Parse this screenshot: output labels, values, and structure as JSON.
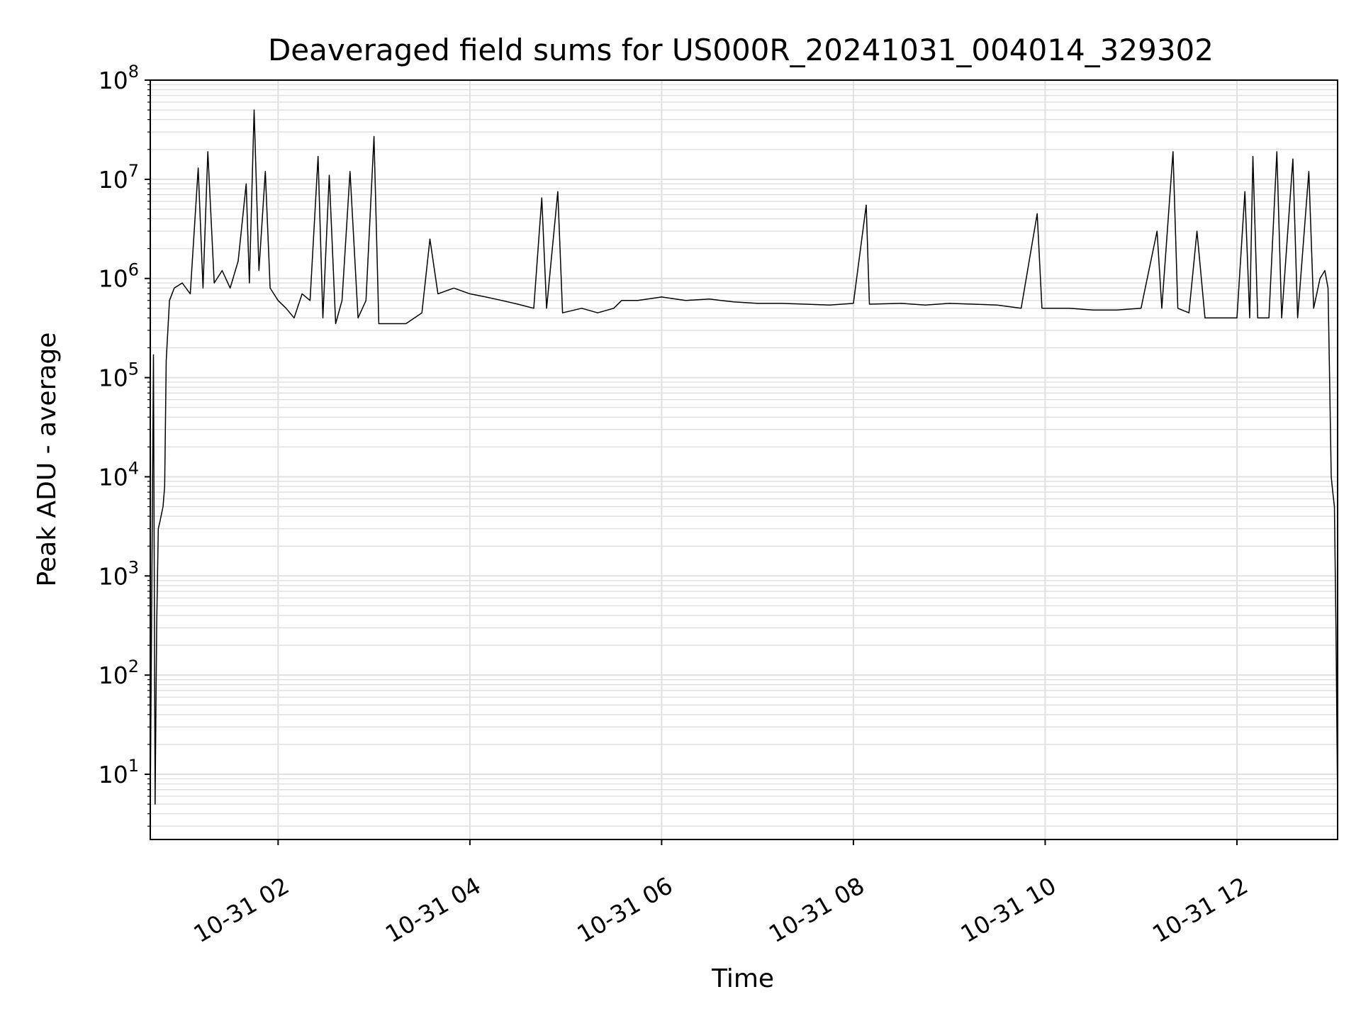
{
  "chart_data": {
    "type": "line",
    "title": "Deaveraged field sums for US000R_20241031_004014_329302",
    "xlabel": "Time",
    "ylabel": "Peak ADU - average",
    "yscale": "log",
    "ylim": [
      2.2,
      100000000
    ],
    "xlim": [
      "2024-10-31 00:40",
      "2024-10-31 13:03"
    ],
    "grid": true,
    "line_color": "#000000",
    "grid_color": "#e0e0e0",
    "x_ticks": [
      {
        "t": "2024-10-31 02:00",
        "label": "10-31 02"
      },
      {
        "t": "2024-10-31 04:00",
        "label": "10-31 04"
      },
      {
        "t": "2024-10-31 06:00",
        "label": "10-31 06"
      },
      {
        "t": "2024-10-31 08:00",
        "label": "10-31 08"
      },
      {
        "t": "2024-10-31 10:00",
        "label": "10-31 10"
      },
      {
        "t": "2024-10-31 12:00",
        "label": "10-31 12"
      }
    ],
    "y_ticks": [
      {
        "value": 10,
        "base": "10",
        "exp": "1"
      },
      {
        "value": 100,
        "base": "10",
        "exp": "2"
      },
      {
        "value": 1000,
        "base": "10",
        "exp": "3"
      },
      {
        "value": 10000,
        "base": "10",
        "exp": "4"
      },
      {
        "value": 100000,
        "base": "10",
        "exp": "5"
      },
      {
        "value": 1000000,
        "base": "10",
        "exp": "6"
      },
      {
        "value": 10000000,
        "base": "10",
        "exp": "7"
      },
      {
        "value": 100000000,
        "base": "10",
        "exp": "8"
      }
    ],
    "series": [
      {
        "points": [
          [
            "2024-10-31 00:40",
            5
          ],
          [
            "2024-10-31 00:42",
            170000
          ],
          [
            "2024-10-31 00:43",
            5
          ],
          [
            "2024-10-31 00:44",
            300
          ],
          [
            "2024-10-31 00:45",
            3000
          ],
          [
            "2024-10-31 00:46",
            3500
          ],
          [
            "2024-10-31 00:48",
            5000
          ],
          [
            "2024-10-31 00:49",
            8000
          ],
          [
            "2024-10-31 00:50",
            150000
          ],
          [
            "2024-10-31 00:52",
            600000
          ],
          [
            "2024-10-31 00:55",
            800000
          ],
          [
            "2024-10-31 01:00",
            900000
          ],
          [
            "2024-10-31 01:05",
            700000
          ],
          [
            "2024-10-31 01:10",
            13000000
          ],
          [
            "2024-10-31 01:13",
            800000
          ],
          [
            "2024-10-31 01:16",
            19000000
          ],
          [
            "2024-10-31 01:20",
            900000
          ],
          [
            "2024-10-31 01:25",
            1200000
          ],
          [
            "2024-10-31 01:30",
            800000
          ],
          [
            "2024-10-31 01:35",
            1500000
          ],
          [
            "2024-10-31 01:40",
            9000000
          ],
          [
            "2024-10-31 01:42",
            900000
          ],
          [
            "2024-10-31 01:45",
            50000000
          ],
          [
            "2024-10-31 01:48",
            1200000
          ],
          [
            "2024-10-31 01:52",
            12000000
          ],
          [
            "2024-10-31 01:55",
            800000
          ],
          [
            "2024-10-31 02:00",
            600000
          ],
          [
            "2024-10-31 02:05",
            500000
          ],
          [
            "2024-10-31 02:10",
            400000
          ],
          [
            "2024-10-31 02:15",
            700000
          ],
          [
            "2024-10-31 02:20",
            600000
          ],
          [
            "2024-10-31 02:25",
            17000000
          ],
          [
            "2024-10-31 02:28",
            400000
          ],
          [
            "2024-10-31 02:32",
            11000000
          ],
          [
            "2024-10-31 02:36",
            350000
          ],
          [
            "2024-10-31 02:40",
            600000
          ],
          [
            "2024-10-31 02:45",
            12000000
          ],
          [
            "2024-10-31 02:50",
            400000
          ],
          [
            "2024-10-31 02:55",
            600000
          ],
          [
            "2024-10-31 03:00",
            27000000
          ],
          [
            "2024-10-31 03:03",
            350000
          ],
          [
            "2024-10-31 03:10",
            350000
          ],
          [
            "2024-10-31 03:20",
            350000
          ],
          [
            "2024-10-31 03:30",
            450000
          ],
          [
            "2024-10-31 03:35",
            2500000
          ],
          [
            "2024-10-31 03:40",
            700000
          ],
          [
            "2024-10-31 03:50",
            800000
          ],
          [
            "2024-10-31 04:00",
            700000
          ],
          [
            "2024-10-31 04:10",
            650000
          ],
          [
            "2024-10-31 04:20",
            600000
          ],
          [
            "2024-10-31 04:30",
            550000
          ],
          [
            "2024-10-31 04:40",
            500000
          ],
          [
            "2024-10-31 04:45",
            6500000
          ],
          [
            "2024-10-31 04:48",
            500000
          ],
          [
            "2024-10-31 04:55",
            7500000
          ],
          [
            "2024-10-31 04:58",
            450000
          ],
          [
            "2024-10-31 05:10",
            500000
          ],
          [
            "2024-10-31 05:20",
            450000
          ],
          [
            "2024-10-31 05:30",
            500000
          ],
          [
            "2024-10-31 05:35",
            600000
          ],
          [
            "2024-10-31 05:45",
            600000
          ],
          [
            "2024-10-31 06:00",
            650000
          ],
          [
            "2024-10-31 06:15",
            600000
          ],
          [
            "2024-10-31 06:30",
            620000
          ],
          [
            "2024-10-31 06:45",
            580000
          ],
          [
            "2024-10-31 07:00",
            560000
          ],
          [
            "2024-10-31 07:15",
            560000
          ],
          [
            "2024-10-31 07:30",
            550000
          ],
          [
            "2024-10-31 07:45",
            540000
          ],
          [
            "2024-10-31 08:00",
            560000
          ],
          [
            "2024-10-31 08:08",
            5500000
          ],
          [
            "2024-10-31 08:10",
            550000
          ],
          [
            "2024-10-31 08:30",
            560000
          ],
          [
            "2024-10-31 08:45",
            540000
          ],
          [
            "2024-10-31 09:00",
            560000
          ],
          [
            "2024-10-31 09:15",
            550000
          ],
          [
            "2024-10-31 09:30",
            540000
          ],
          [
            "2024-10-31 09:45",
            500000
          ],
          [
            "2024-10-31 09:55",
            4500000
          ],
          [
            "2024-10-31 09:58",
            500000
          ],
          [
            "2024-10-31 10:15",
            500000
          ],
          [
            "2024-10-31 10:30",
            480000
          ],
          [
            "2024-10-31 10:45",
            480000
          ],
          [
            "2024-10-31 11:00",
            500000
          ],
          [
            "2024-10-31 11:10",
            3000000
          ],
          [
            "2024-10-31 11:13",
            500000
          ],
          [
            "2024-10-31 11:20",
            19000000
          ],
          [
            "2024-10-31 11:23",
            500000
          ],
          [
            "2024-10-31 11:30",
            450000
          ],
          [
            "2024-10-31 11:35",
            3000000
          ],
          [
            "2024-10-31 11:40",
            400000
          ],
          [
            "2024-10-31 11:50",
            400000
          ],
          [
            "2024-10-31 12:00",
            400000
          ],
          [
            "2024-10-31 12:05",
            7500000
          ],
          [
            "2024-10-31 12:08",
            400000
          ],
          [
            "2024-10-31 12:10",
            17000000
          ],
          [
            "2024-10-31 12:13",
            400000
          ],
          [
            "2024-10-31 12:20",
            400000
          ],
          [
            "2024-10-31 12:25",
            19000000
          ],
          [
            "2024-10-31 12:28",
            400000
          ],
          [
            "2024-10-31 12:35",
            16000000
          ],
          [
            "2024-10-31 12:38",
            400000
          ],
          [
            "2024-10-31 12:45",
            12000000
          ],
          [
            "2024-10-31 12:48",
            500000
          ],
          [
            "2024-10-31 12:52",
            1000000
          ],
          [
            "2024-10-31 12:55",
            1200000
          ],
          [
            "2024-10-31 12:57",
            800000
          ],
          [
            "2024-10-31 12:58",
            100000
          ],
          [
            "2024-10-31 12:59",
            10000
          ],
          [
            "2024-10-31 13:00",
            7000
          ],
          [
            "2024-10-31 13:01",
            5000
          ],
          [
            "2024-10-31 13:02",
            300
          ],
          [
            "2024-10-31 13:03",
            5
          ]
        ]
      }
    ]
  }
}
